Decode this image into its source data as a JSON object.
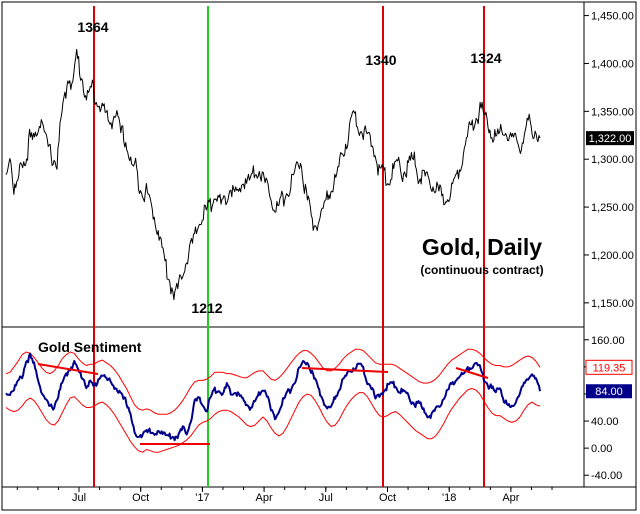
{
  "chart_data": {
    "type": "line",
    "title": "Gold, Daily",
    "subtitle": "(continuous contract)",
    "x_tick_labels": [
      "Jul",
      "Oct",
      "'17",
      "Apr",
      "Jul",
      "Oct",
      "'18",
      "Apr"
    ],
    "price_panel": {
      "ylim": [
        1130,
        1460
      ],
      "y_ticks": [
        1150,
        1200,
        1250,
        1300,
        1350,
        1400,
        1450
      ],
      "y_tick_labels": [
        "1,150.00",
        "1,200.00",
        "1,250.00",
        "1,300.00",
        "1,350.00",
        "1,400.00",
        "1,450.00"
      ],
      "last_value_label": "1,322.00",
      "last_value": 1322,
      "peak_labels": [
        "1364",
        "1340",
        "1324"
      ],
      "trough_label": "1212",
      "series": [
        {
          "name": "Gold Daily",
          "color": "#000000",
          "values": [
            1282,
            1308,
            1268,
            1272,
            1300,
            1295,
            1322,
            1318,
            1332,
            1345,
            1320,
            1310,
            1300,
            1296,
            1340,
            1365,
            1388,
            1376,
            1410,
            1390,
            1374,
            1362,
            1378,
            1360,
            1356,
            1352,
            1339,
            1341,
            1350,
            1328,
            1325,
            1310,
            1292,
            1292,
            1274,
            1265,
            1265,
            1250,
            1237,
            1222,
            1202,
            1183,
            1168,
            1160,
            1165,
            1185,
            1195,
            1208,
            1216,
            1232,
            1240,
            1246,
            1250,
            1268,
            1258,
            1250,
            1254,
            1272,
            1265,
            1261,
            1273,
            1280,
            1276,
            1288,
            1290,
            1285,
            1274,
            1270,
            1256,
            1248,
            1255,
            1262,
            1268,
            1278,
            1292,
            1300,
            1270,
            1252,
            1236,
            1230,
            1238,
            1251,
            1260,
            1272,
            1280,
            1295,
            1310,
            1322,
            1340,
            1346,
            1332,
            1330,
            1320,
            1318,
            1306,
            1288,
            1286,
            1280,
            1282,
            1290,
            1295,
            1286,
            1288,
            1298,
            1298,
            1284,
            1282,
            1278,
            1275,
            1270,
            1268,
            1260,
            1257,
            1266,
            1275,
            1285,
            1300,
            1316,
            1330,
            1338,
            1345,
            1352,
            1345,
            1335,
            1326,
            1322,
            1327,
            1330,
            1322,
            1318,
            1320,
            1312,
            1325,
            1340,
            1332,
            1330,
            1322
          ]
        }
      ]
    },
    "sentiment_panel": {
      "title": "Gold Sentiment",
      "ylim": [
        -50,
        170
      ],
      "y_ticks": [
        -40,
        0,
        40,
        80,
        120,
        160
      ],
      "y_tick_labels": [
        "-40.00",
        "0.00",
        "40.00",
        "80.00",
        "120.00",
        "160.00"
      ],
      "upper_band_label": "119.35",
      "upper_band_value": 119.35,
      "sentiment_label": "84.00",
      "sentiment_value": 84,
      "series": [
        {
          "name": "Gold Sentiment",
          "color": "#00008b",
          "values": [
            80,
            82,
            88,
            97,
            106,
            128,
            135,
            122,
            103,
            82,
            68,
            60,
            62,
            78,
            95,
            108,
            119,
            126,
            114,
            106,
            93,
            96,
            90,
            102,
            110,
            101,
            98,
            92,
            84,
            74,
            68,
            52,
            22,
            12,
            24,
            30,
            22,
            18,
            28,
            24,
            17,
            18,
            16,
            20,
            28,
            24,
            40,
            68,
            72,
            64,
            56,
            75,
            85,
            89,
            78,
            92,
            80,
            84,
            78,
            70,
            64,
            60,
            68,
            80,
            90,
            80,
            55,
            45,
            58,
            70,
            80,
            88,
            100,
            116,
            126,
            128,
            114,
            98,
            86,
            70,
            58,
            60,
            74,
            88,
            102,
            108,
            116,
            120,
            122,
            118,
            98,
            92,
            70,
            78,
            84,
            92,
            94,
            94,
            84,
            82,
            78,
            70,
            64,
            66,
            54,
            50,
            48,
            55,
            62,
            74,
            84,
            94,
            100,
            110,
            108,
            118,
            122,
            126,
            118,
            104,
            94,
            88,
            82,
            92,
            72,
            62,
            58,
            70,
            82,
            92,
            100,
            112,
            103,
            84
          ]
        },
        {
          "name": "Upper Band",
          "color": "#ff0000",
          "values": [
            110,
            112,
            120,
            128,
            138,
            142,
            140,
            134,
            126,
            118,
            112,
            110,
            114,
            122,
            132,
            138,
            142,
            140,
            132,
            126,
            122,
            124,
            124,
            128,
            130,
            126,
            122,
            116,
            108,
            98,
            88,
            76,
            64,
            58,
            56,
            58,
            56,
            52,
            50,
            50,
            50,
            52,
            56,
            62,
            70,
            80,
            90,
            98,
            100,
            100,
            102,
            106,
            112,
            112,
            112,
            110,
            110,
            108,
            106,
            104,
            104,
            108,
            112,
            114,
            114,
            108,
            102,
            100,
            104,
            110,
            118,
            126,
            134,
            140,
            144,
            144,
            140,
            134,
            126,
            118,
            114,
            114,
            118,
            124,
            132,
            138,
            142,
            146,
            146,
            144,
            138,
            132,
            126,
            124,
            124,
            124,
            124,
            122,
            118,
            114,
            110,
            106,
            102,
            98,
            96,
            96,
            98,
            102,
            108,
            116,
            124,
            130,
            134,
            138,
            142,
            146,
            146,
            144,
            140,
            134,
            128,
            124,
            122,
            122,
            120,
            120,
            122,
            126,
            130,
            134,
            136,
            134,
            128,
            119.35
          ]
        },
        {
          "name": "Lower Band",
          "color": "#ff0000",
          "values": [
            60,
            56,
            54,
            56,
            62,
            70,
            74,
            70,
            62,
            52,
            42,
            36,
            34,
            40,
            52,
            64,
            74,
            76,
            70,
            64,
            60,
            60,
            62,
            66,
            68,
            64,
            58,
            50,
            40,
            30,
            20,
            10,
            2,
            -4,
            -6,
            -2,
            -4,
            -6,
            -6,
            -4,
            -2,
            0,
            2,
            4,
            8,
            12,
            18,
            26,
            34,
            38,
            40,
            44,
            50,
            54,
            56,
            56,
            54,
            50,
            46,
            40,
            34,
            32,
            34,
            40,
            46,
            40,
            30,
            22,
            18,
            22,
            32,
            44,
            56,
            68,
            76,
            80,
            78,
            70,
            60,
            48,
            38,
            32,
            34,
            42,
            54,
            64,
            72,
            78,
            82,
            82,
            76,
            66,
            56,
            48,
            46,
            48,
            52,
            54,
            50,
            44,
            38,
            32,
            26,
            22,
            18,
            14,
            14,
            18,
            26,
            36,
            48,
            58,
            66,
            74,
            80,
            86,
            88,
            86,
            80,
            70,
            60,
            52,
            48,
            48,
            44,
            40,
            38,
            40,
            46,
            56,
            64,
            68,
            64,
            62
          ]
        }
      ]
    },
    "colors": {
      "price": "#000000",
      "sentiment": "#00008b",
      "bands": "#ff0000",
      "cycle_lines": "#dd0000",
      "green_line": "#22cc22",
      "divergence": "#ee0000"
    }
  }
}
